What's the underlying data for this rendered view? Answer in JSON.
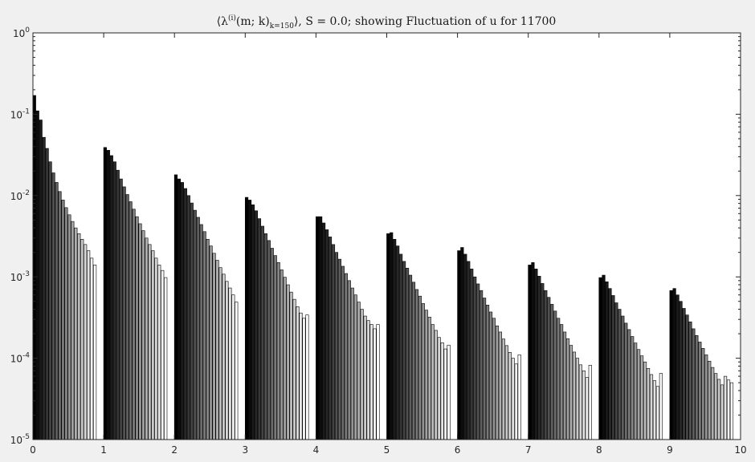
{
  "chart_data": {
    "type": "bar",
    "scale": "log",
    "title": {
      "prefix": "⟨λ",
      "sup": "(i)",
      "mid": "(m; k)",
      "sub": "k=150",
      "suffix": "⟩, S = 0.0; showing Fluctuation of u for 11700"
    },
    "xlim": [
      0,
      10
    ],
    "ylim": [
      1e-05,
      1
    ],
    "x_ticks": [
      "0",
      "1",
      "2",
      "3",
      "4",
      "5",
      "6",
      "7",
      "8",
      "9",
      "10"
    ],
    "y_ticks": [
      {
        "base": "10",
        "exp": "-5",
        "value": 1e-05
      },
      {
        "base": "10",
        "exp": "-4",
        "value": 0.0001
      },
      {
        "base": "10",
        "exp": "-3",
        "value": 0.001
      },
      {
        "base": "10",
        "exp": "-2",
        "value": 0.01
      },
      {
        "base": "10",
        "exp": "-1",
        "value": 0.1
      },
      {
        "base": "10",
        "exp": "0",
        "value": 1
      }
    ],
    "grid": false,
    "color_scheme": "black-to-white grayscale within each group",
    "bars_per_group": 20,
    "groups": [
      {
        "m": 0,
        "values": [
          0.17,
          0.11,
          0.085,
          0.052,
          0.038,
          0.026,
          0.019,
          0.0145,
          0.0112,
          0.0088,
          0.0071,
          0.0058,
          0.0048,
          0.004,
          0.0034,
          0.0029,
          0.0025,
          0.0021,
          0.0017,
          0.0014
        ]
      },
      {
        "m": 1,
        "values": [
          0.039,
          0.036,
          0.031,
          0.026,
          0.0205,
          0.016,
          0.0128,
          0.0103,
          0.0084,
          0.0068,
          0.0055,
          0.0045,
          0.0037,
          0.003,
          0.0025,
          0.0021,
          0.0017,
          0.0014,
          0.0012,
          0.00098
        ]
      },
      {
        "m": 2,
        "values": [
          0.018,
          0.016,
          0.0145,
          0.0122,
          0.01,
          0.0081,
          0.0066,
          0.0054,
          0.0044,
          0.0036,
          0.0029,
          0.0024,
          0.00195,
          0.0016,
          0.0013,
          0.00108,
          0.00088,
          0.00073,
          0.0006,
          0.00049
        ]
      },
      {
        "m": 3,
        "values": [
          0.0095,
          0.0088,
          0.0077,
          0.0065,
          0.0052,
          0.0042,
          0.0034,
          0.0028,
          0.00225,
          0.00183,
          0.0015,
          0.00122,
          0.00099,
          0.0008,
          0.00065,
          0.00053,
          0.00043,
          0.00036,
          0.00031,
          0.00034
        ]
      },
      {
        "m": 4,
        "values": [
          0.0055,
          0.0055,
          0.0046,
          0.0038,
          0.0031,
          0.0025,
          0.002,
          0.00165,
          0.00135,
          0.0011,
          0.0009,
          0.00073,
          0.0006,
          0.00049,
          0.0004,
          0.00033,
          0.00029,
          0.00026,
          0.00023,
          0.00026
        ]
      },
      {
        "m": 5,
        "values": [
          0.0034,
          0.0035,
          0.0029,
          0.0024,
          0.0019,
          0.00155,
          0.00128,
          0.00105,
          0.00086,
          0.0007,
          0.00058,
          0.00047,
          0.00039,
          0.00032,
          0.00026,
          0.00022,
          0.00018,
          0.000155,
          0.00013,
          0.000145
        ]
      },
      {
        "m": 6,
        "values": [
          0.0021,
          0.0023,
          0.0019,
          0.00155,
          0.00125,
          0.001,
          0.00082,
          0.00068,
          0.00055,
          0.00045,
          0.00037,
          0.00031,
          0.00025,
          0.00021,
          0.000172,
          0.000143,
          0.000118,
          0.0001,
          8.5e-05,
          0.00011
        ]
      },
      {
        "m": 7,
        "values": [
          0.0014,
          0.0015,
          0.00125,
          0.00102,
          0.00083,
          0.00068,
          0.00056,
          0.00046,
          0.00038,
          0.00031,
          0.00026,
          0.00021,
          0.000174,
          0.000144,
          0.000119,
          0.0001,
          8.3e-05,
          7e-05,
          5.8e-05,
          8.2e-05
        ]
      },
      {
        "m": 8,
        "values": [
          0.00098,
          0.00105,
          0.00087,
          0.00072,
          0.00059,
          0.00048,
          0.0004,
          0.00033,
          0.00027,
          0.000225,
          0.000185,
          0.000154,
          0.000128,
          0.000107,
          9e-05,
          7.5e-05,
          6.3e-05,
          5.3e-05,
          4.5e-05,
          6.5e-05
        ]
      },
      {
        "m": 9,
        "values": [
          0.00068,
          0.00072,
          0.0006,
          0.0005,
          0.00041,
          0.00034,
          0.00028,
          0.00023,
          0.00019,
          0.000158,
          0.000132,
          0.00011,
          9.2e-05,
          7.7e-05,
          6.5e-05,
          5.5e-05,
          4.7e-05,
          6e-05,
          5.4e-05,
          5e-05
        ]
      }
    ]
  }
}
